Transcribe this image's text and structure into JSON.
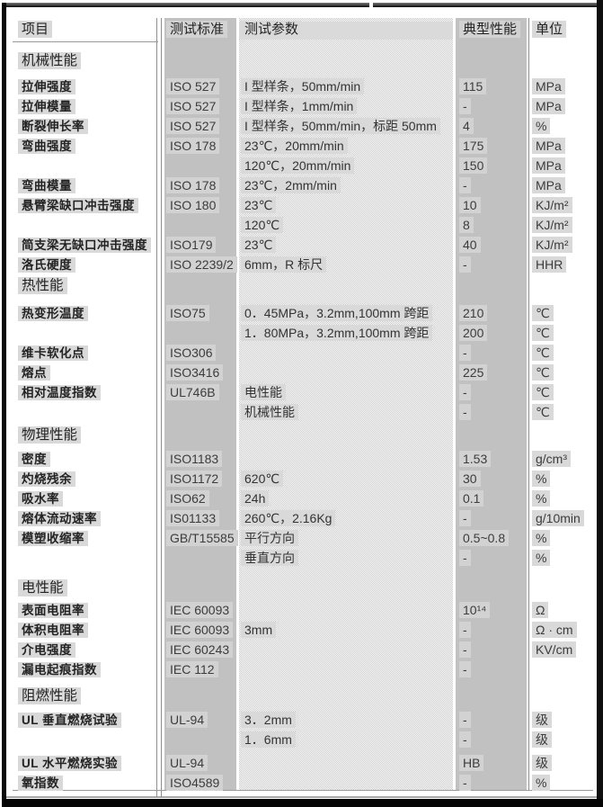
{
  "header": {
    "col_item": "项目",
    "col_standard": "测试标准",
    "col_params": "测试参数",
    "col_typical": "典型性能",
    "col_unit": "单位"
  },
  "colors": {
    "band_gray": "#c1c1c1",
    "dither_gray": "#c9c9c9",
    "highlight": "#d9d9d9",
    "frame_black": "#0a0a0a"
  },
  "sections": [
    {
      "title": "机械性能",
      "rows": [
        {
          "item": "拉伸强度",
          "standard": "ISO 527",
          "params": "I 型样条，50mm/min",
          "typical": "115",
          "unit": "MPa"
        },
        {
          "item": "拉伸模量",
          "standard": "ISO 527",
          "params": "I 型样条，1mm/min",
          "typical": "-",
          "unit": "MPa"
        },
        {
          "item": "断裂伸长率",
          "standard": "ISO 527",
          "params": "I 型样条，50mm/min，标距 50mm",
          "typical": "4",
          "unit": "%"
        },
        {
          "item": "弯曲强度",
          "standard": "ISO 178",
          "params": "23℃，20mm/min",
          "typical": "175",
          "unit": "MPa"
        },
        {
          "item": "",
          "standard": "",
          "params": "120℃，20mm/min",
          "typical": "150",
          "unit": "MPa"
        },
        {
          "item": "弯曲模量",
          "standard": "ISO 178",
          "params": "23℃，2mm/min",
          "typical": "-",
          "unit": "MPa"
        },
        {
          "item": "悬臂梁缺口冲击强度",
          "standard": "ISO 180",
          "params": "23℃",
          "typical": "10",
          "unit": "KJ/m²"
        },
        {
          "item": "",
          "standard": "",
          "params": "120℃",
          "typical": "8",
          "unit": "KJ/m²"
        },
        {
          "item": "简支梁无缺口冲击强度",
          "standard": "ISO179",
          "params": "23℃",
          "typical": "40",
          "unit": "KJ/m²"
        },
        {
          "item": "洛氏硬度",
          "standard": "ISO 2239/2",
          "params": "6mm，R 标尺",
          "typical": "-",
          "unit": "HHR"
        }
      ]
    },
    {
      "title": "热性能",
      "rows": [
        {
          "item": "热变形温度",
          "standard": "ISO75",
          "params": "0．45MPa，3.2mm,100mm 跨距",
          "typical": "210",
          "unit": "℃"
        },
        {
          "item": "",
          "standard": "",
          "params": "1．80MPa，3.2mm,100mm 跨距",
          "typical": "200",
          "unit": "℃"
        },
        {
          "item": "维卡软化点",
          "standard": "ISO306",
          "params": "",
          "typical": "-",
          "unit": "℃"
        },
        {
          "item": "熔点",
          "standard": "ISO3416",
          "params": "",
          "typical": "225",
          "unit": "℃"
        },
        {
          "item": "相对温度指数",
          "standard": "UL746B",
          "params": "电性能",
          "typical": "-",
          "unit": "℃"
        },
        {
          "item": "",
          "standard": "",
          "params": "机械性能",
          "typical": "-",
          "unit": "℃"
        }
      ]
    },
    {
      "title": "物理性能",
      "rows": [
        {
          "item": "密度",
          "standard": "ISO1183",
          "params": "",
          "typical": "1.53",
          "unit": "g/cm³"
        },
        {
          "item": "灼烧残余",
          "standard": "ISO1172",
          "params": "620℃",
          "typical": "30",
          "unit": "%"
        },
        {
          "item": "吸水率",
          "standard": "ISO62",
          "params": "24h",
          "typical": "0.1",
          "unit": "%"
        },
        {
          "item": "熔体流动速率",
          "standard": "IS01133",
          "params": "260℃，2.16Kg",
          "typical": "-",
          "unit": "g/10min"
        },
        {
          "item": "模塑收缩率",
          "standard": "GB/T15585",
          "params": "平行方向",
          "typical": "0.5~0.8",
          "unit": "%"
        },
        {
          "item": "",
          "standard": "",
          "params": "垂直方向",
          "typical": "-",
          "unit": "%"
        }
      ]
    },
    {
      "title": "电性能",
      "rows": [
        {
          "item": "表面电阻率",
          "standard": "IEC 60093",
          "params": "",
          "typical": "10¹⁴",
          "unit": "Ω"
        },
        {
          "item": "体积电阻率",
          "standard": "IEC 60093",
          "params": "3mm",
          "typical": "-",
          "unit": "Ω · cm"
        },
        {
          "item": "介电强度",
          "standard": "IEC 60243",
          "params": "",
          "typical": "-",
          "unit": "KV/cm"
        },
        {
          "item": "漏电起痕指数",
          "standard": "IEC 112",
          "params": "",
          "typical": "-",
          "unit": ""
        }
      ]
    },
    {
      "title": "阻燃性能",
      "rows": [
        {
          "item": "UL 垂直燃烧试验",
          "standard": "UL-94",
          "params": "3．2mm",
          "typical": "-",
          "unit": "级"
        },
        {
          "item": "",
          "standard": "",
          "params": "1．6mm",
          "typical": "-",
          "unit": "级"
        },
        {
          "item": "UL 水平燃烧实验",
          "standard": "UL-94",
          "params": "",
          "typical": "HB",
          "unit": "级"
        },
        {
          "item": "氧指数",
          "standard": "ISO4589",
          "params": "",
          "typical": "-",
          "unit": "%"
        }
      ]
    }
  ]
}
